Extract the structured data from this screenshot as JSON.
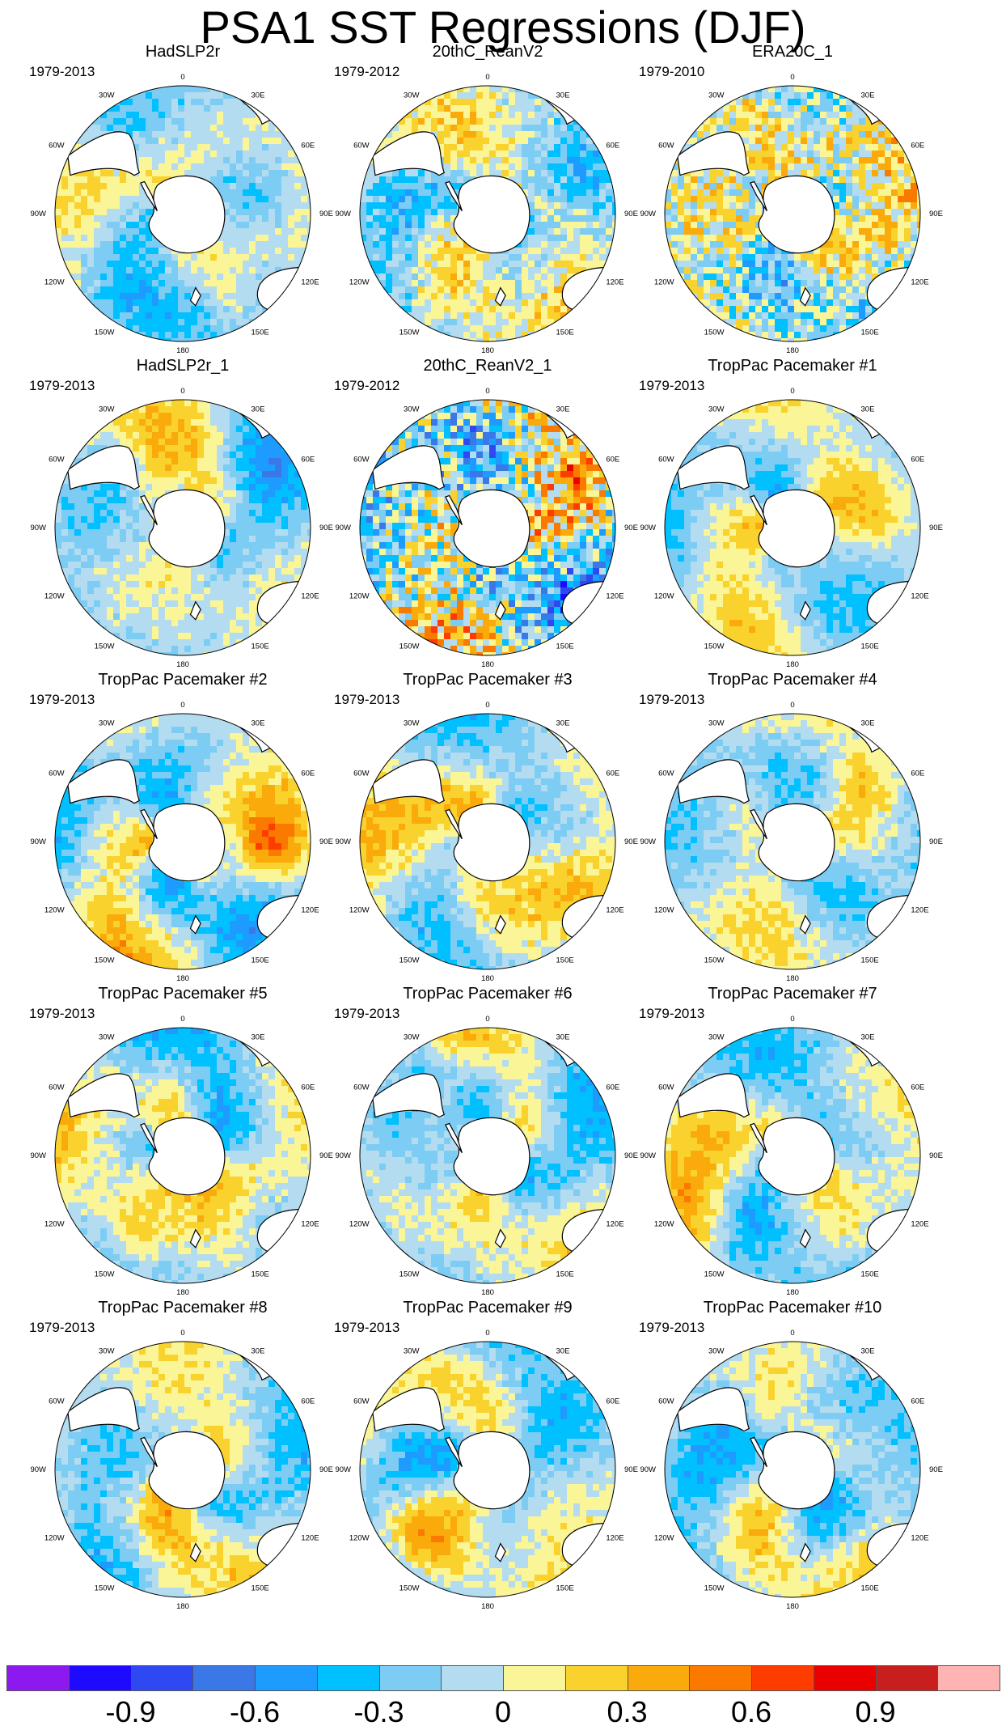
{
  "title": "PSA1 SST Regressions (DJF)",
  "longitude_labels": [
    "0",
    "30E",
    "60E",
    "90E",
    "120E",
    "150E",
    "180",
    "150W",
    "120W",
    "90W",
    "60W",
    "30W"
  ],
  "colorbar": {
    "colors": [
      "#8C1AF0",
      "#1E0AFF",
      "#2E48F2",
      "#3A78E8",
      "#1E9BFF",
      "#00C0FF",
      "#7CCCF4",
      "#B4DCF0",
      "#FAF596",
      "#FAD22D",
      "#FAAA0A",
      "#FA7A00",
      "#FF3C00",
      "#EB0000",
      "#C81E1E",
      "#FFB4B4"
    ],
    "tick_labels": [
      "-0.9",
      "-0.6",
      "-0.3",
      "0",
      "0.3",
      "0.6",
      "0.9"
    ],
    "tick_positions_after_box": [
      1,
      3,
      5,
      7,
      9,
      11,
      13
    ]
  },
  "panels": [
    {
      "title": "HadSLP2r",
      "period": "1979-2013",
      "pattern": {
        "seed": 11,
        "amp": 0.35,
        "noise": 0.1,
        "blob": 0.55
      }
    },
    {
      "title": "20thC_ReanV2",
      "period": "1979-2012",
      "pattern": {
        "seed": 23,
        "amp": 0.4,
        "noise": 0.18,
        "blob": 0.45
      }
    },
    {
      "title": "ERA20C_1",
      "period": "1979-2010",
      "pattern": {
        "seed": 37,
        "amp": 0.32,
        "noise": 0.3,
        "blob": 0.3
      }
    },
    {
      "title": "HadSLP2r_1",
      "period": "1979-2013",
      "pattern": {
        "seed": 41,
        "amp": 0.35,
        "noise": 0.1,
        "blob": 0.55
      }
    },
    {
      "title": "20thC_ReanV2_1",
      "period": "1979-2012",
      "pattern": {
        "seed": 53,
        "amp": 0.55,
        "noise": 0.45,
        "blob": 0.25
      }
    },
    {
      "title": "TropPac Pacemaker #1",
      "period": "1979-2013",
      "pattern": {
        "seed": 61,
        "amp": 0.45,
        "noise": 0.08,
        "blob": 0.6
      }
    },
    {
      "title": "TropPac Pacemaker #2",
      "period": "1979-2013",
      "pattern": {
        "seed": 71,
        "amp": 0.55,
        "noise": 0.1,
        "blob": 0.6
      }
    },
    {
      "title": "TropPac Pacemaker #3",
      "period": "1979-2013",
      "pattern": {
        "seed": 83,
        "amp": 0.45,
        "noise": 0.1,
        "blob": 0.6
      }
    },
    {
      "title": "TropPac Pacemaker #4",
      "period": "1979-2013",
      "pattern": {
        "seed": 97,
        "amp": 0.4,
        "noise": 0.1,
        "blob": 0.6
      }
    },
    {
      "title": "TropPac Pacemaker #5",
      "period": "1979-2013",
      "pattern": {
        "seed": 101,
        "amp": 0.45,
        "noise": 0.1,
        "blob": 0.6
      }
    },
    {
      "title": "TropPac Pacemaker #6",
      "period": "1979-2013",
      "pattern": {
        "seed": 113,
        "amp": 0.45,
        "noise": 0.1,
        "blob": 0.6
      }
    },
    {
      "title": "TropPac Pacemaker #7",
      "period": "1979-2013",
      "pattern": {
        "seed": 127,
        "amp": 0.45,
        "noise": 0.1,
        "blob": 0.6
      }
    },
    {
      "title": "TropPac Pacemaker #8",
      "period": "1979-2013",
      "pattern": {
        "seed": 131,
        "amp": 0.45,
        "noise": 0.1,
        "blob": 0.6
      }
    },
    {
      "title": "TropPac Pacemaker #9",
      "period": "1979-2013",
      "pattern": {
        "seed": 139,
        "amp": 0.45,
        "noise": 0.1,
        "blob": 0.6
      }
    },
    {
      "title": "TropPac Pacemaker #10",
      "period": "1979-2013",
      "pattern": {
        "seed": 149,
        "amp": 0.45,
        "noise": 0.1,
        "blob": 0.6
      }
    }
  ]
}
